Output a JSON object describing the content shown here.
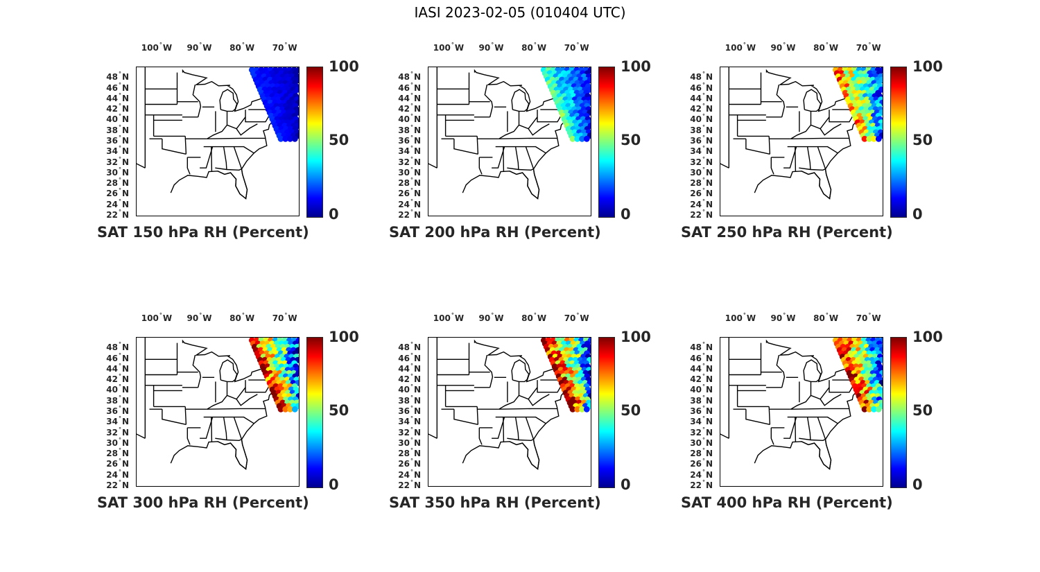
{
  "title": "IASI 2023-02-05 (010404 UTC)",
  "lon_ticks": [
    {
      "lon": -100,
      "num": "100",
      "hem": "W"
    },
    {
      "lon": -90,
      "num": "90",
      "hem": "W"
    },
    {
      "lon": -80,
      "num": "80",
      "hem": "W"
    },
    {
      "lon": -70,
      "num": "70",
      "hem": "W"
    }
  ],
  "lat_ticks": [
    {
      "lat": 48,
      "num": "48",
      "hem": "N"
    },
    {
      "lat": 46,
      "num": "46",
      "hem": "N"
    },
    {
      "lat": 44,
      "num": "44",
      "hem": "N"
    },
    {
      "lat": 42,
      "num": "42",
      "hem": "N"
    },
    {
      "lat": 40,
      "num": "40",
      "hem": "N"
    },
    {
      "lat": 38,
      "num": "38",
      "hem": "N"
    },
    {
      "lat": 36,
      "num": "36",
      "hem": "N"
    },
    {
      "lat": 34,
      "num": "34",
      "hem": "N"
    },
    {
      "lat": 32,
      "num": "32",
      "hem": "N"
    },
    {
      "lat": 30,
      "num": "30",
      "hem": "N"
    },
    {
      "lat": 28,
      "num": "28",
      "hem": "N"
    },
    {
      "lat": 26,
      "num": "26",
      "hem": "N"
    },
    {
      "lat": 24,
      "num": "24",
      "hem": "N"
    },
    {
      "lat": 22,
      "num": "22",
      "hem": "N"
    }
  ],
  "extent": {
    "lon": [
      -106,
      -68
    ],
    "lat": [
      22,
      50
    ]
  },
  "colorbar": {
    "min": 0,
    "max": 100,
    "ticks": [
      "100",
      "50",
      "0"
    ],
    "colormap": "jet"
  },
  "panels": [
    {
      "title": "SAT 150 hPa RH (Percent)",
      "pressure_hPa": 150,
      "rh_regime": [
        5,
        15
      ]
    },
    {
      "title": "SAT 200 hPa RH (Percent)",
      "pressure_hPa": 200,
      "rh_regime": [
        8,
        45
      ]
    },
    {
      "title": "SAT 250 hPa RH (Percent)",
      "pressure_hPa": 250,
      "rh_regime": [
        10,
        75
      ]
    },
    {
      "title": "SAT 300 hPa RH (Percent)",
      "pressure_hPa": 300,
      "rh_regime": [
        10,
        85
      ]
    },
    {
      "title": "SAT 350 hPa RH (Percent)",
      "pressure_hPa": 350,
      "rh_regime": [
        10,
        90
      ]
    },
    {
      "title": "SAT 400 hPa RH (Percent)",
      "pressure_hPa": 400,
      "rh_regime": [
        10,
        90
      ]
    }
  ]
}
